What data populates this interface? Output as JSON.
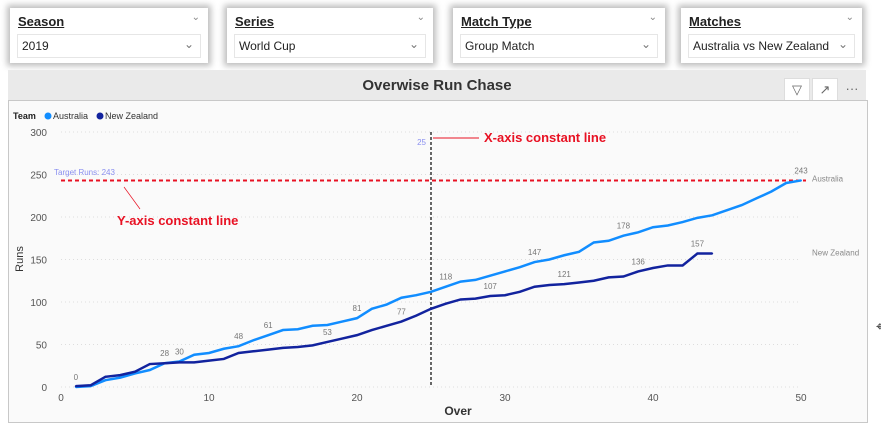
{
  "slicers": [
    {
      "label": "Season",
      "value": "2019"
    },
    {
      "label": "Series",
      "value": "World Cup"
    },
    {
      "label": "Match Type",
      "value": "Group Match"
    },
    {
      "label": "Matches",
      "value": "Australia vs New Zealand"
    }
  ],
  "visual": {
    "title": "Overwise Run Chase",
    "icons": [
      "filter-icon",
      "focus-mode-icon",
      "more-options-icon"
    ],
    "more_label": "···"
  },
  "chart_data": {
    "type": "line",
    "xlabel": "Over",
    "ylabel": "Runs",
    "xlim": [
      0,
      50
    ],
    "ylim": [
      0,
      300
    ],
    "xticks": [
      0,
      10,
      20,
      30,
      40,
      50
    ],
    "yticks": [
      0,
      50,
      100,
      150,
      200,
      250,
      300
    ],
    "grid": true,
    "legend": {
      "title": "Team",
      "position": "top-left"
    },
    "series": [
      {
        "name": "Australia",
        "color": "#118DFF",
        "x": [
          1,
          2,
          3,
          4,
          5,
          6,
          7,
          8,
          9,
          10,
          11,
          12,
          13,
          14,
          15,
          16,
          17,
          18,
          19,
          20,
          21,
          22,
          23,
          24,
          25,
          26,
          27,
          28,
          29,
          30,
          31,
          32,
          33,
          34,
          35,
          36,
          37,
          38,
          39,
          40,
          41,
          42,
          43,
          44,
          45,
          46,
          47,
          48,
          49,
          50
        ],
        "y": [
          0,
          1,
          8,
          11,
          16,
          20,
          28,
          30,
          38,
          40,
          45,
          48,
          55,
          61,
          67,
          68,
          72,
          73,
          77,
          81,
          92,
          97,
          105,
          108,
          112,
          118,
          124,
          126,
          131,
          136,
          141,
          147,
          150,
          155,
          159,
          170,
          172,
          178,
          182,
          188,
          190,
          194,
          199,
          202,
          208,
          214,
          222,
          230,
          240,
          243
        ],
        "labeled_overs": [
          1,
          7,
          8,
          12,
          14,
          20,
          26,
          32,
          38,
          50
        ]
      },
      {
        "name": "New Zealand",
        "color": "#12239E",
        "x": [
          1,
          2,
          3,
          4,
          5,
          6,
          7,
          8,
          9,
          10,
          11,
          12,
          13,
          14,
          15,
          16,
          17,
          18,
          19,
          20,
          21,
          22,
          23,
          24,
          25,
          26,
          27,
          28,
          29,
          30,
          31,
          32,
          33,
          34,
          35,
          36,
          37,
          38,
          39,
          40,
          41,
          42,
          43,
          44
        ],
        "y": [
          1,
          2,
          12,
          14,
          18,
          27,
          28,
          29,
          29,
          31,
          33,
          40,
          42,
          44,
          46,
          47,
          49,
          53,
          57,
          61,
          67,
          72,
          77,
          84,
          92,
          98,
          103,
          104,
          107,
          108,
          112,
          118,
          120,
          121,
          123,
          125,
          129,
          130,
          136,
          140,
          143,
          143,
          157,
          157
        ],
        "labeled_overs": [
          18,
          23,
          29,
          34,
          39,
          43
        ]
      }
    ],
    "constant_lines": [
      {
        "axis": "y",
        "value": 243,
        "label": "Target Runs: 243",
        "color": "#E81123"
      },
      {
        "axis": "x",
        "value": 25,
        "label": "25",
        "color": "#666666"
      }
    ],
    "annotations": [
      "X-axis constant line",
      "Y-axis constant line"
    ]
  }
}
